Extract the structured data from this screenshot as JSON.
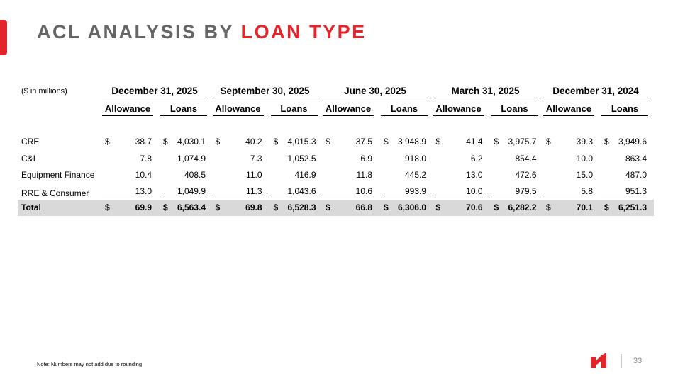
{
  "header": {
    "title": "ACL ANALYSIS BY",
    "title_highlight": "LOAN TYPE"
  },
  "table": {
    "units": "($ in millions)",
    "periods": [
      "December 31, 2025",
      "September 30, 2025",
      "June 30, 2025",
      "March 31, 2025",
      "December 31, 2024"
    ],
    "columns": [
      "Allowance",
      "Loans"
    ],
    "rows": [
      {
        "label": "CRE",
        "currency": "$",
        "cells": [
          "38.7",
          "4,030.1",
          "40.2",
          "4,015.3",
          "37.5",
          "3,948.9",
          "41.4",
          "3,975.7",
          "39.3",
          "3,949.6"
        ]
      },
      {
        "label": "C&I",
        "cells": [
          "7.8",
          "1,074.9",
          "7.3",
          "1,052.5",
          "6.9",
          "918.0",
          "6.2",
          "854.4",
          "10.0",
          "863.4"
        ]
      },
      {
        "label": "Equipment Finance",
        "cells": [
          "10.4",
          "408.5",
          "11.0",
          "416.9",
          "11.8",
          "445.2",
          "13.0",
          "472.6",
          "15.0",
          "487.0"
        ]
      },
      {
        "label": "RRE & Consumer",
        "cells": [
          "13.0",
          "1,049.9",
          "11.3",
          "1,043.6",
          "10.6",
          "993.9",
          "10.0",
          "979.5",
          "5.8",
          "951.3"
        ]
      },
      {
        "label": "Total",
        "currency": "$",
        "cells": [
          "69.9",
          "6,563.4",
          "69.8",
          "6,528.3",
          "66.8",
          "6,306.0",
          "70.6",
          "6,282.2",
          "70.1",
          "6,251.3"
        ]
      }
    ]
  },
  "footer": {
    "note": "Note: Numbers may not add due to rounding",
    "page": "33"
  }
}
